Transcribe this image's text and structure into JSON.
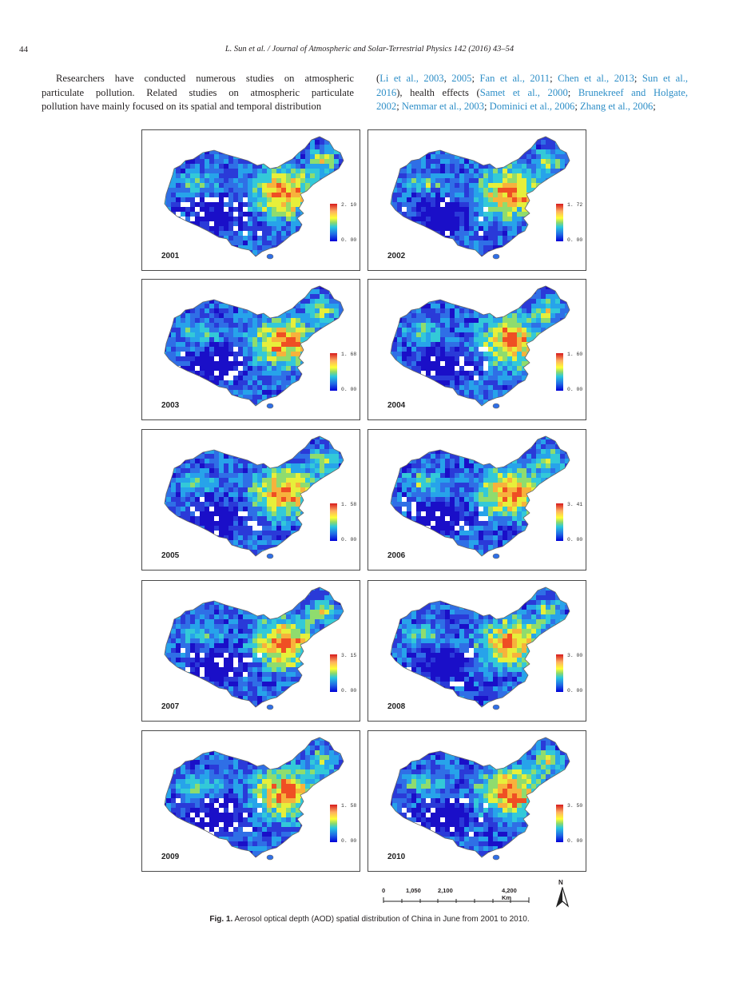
{
  "header": {
    "page_number": "44",
    "running_head": "L. Sun et al. / Journal of Atmospheric and Solar-Terrestrial Physics 142 (2016) 43–54"
  },
  "body": {
    "left_lines": [
      "Researchers have conducted numerous studies on atmospheric",
      "particulate pollution. Related studies on atmospheric particulate",
      "pollution have mainly focused on its spatial and temporal distribution"
    ],
    "right_lines": [
      [
        [
          "(",
          false
        ],
        [
          "Li et al., 2003",
          true
        ],
        [
          ", ",
          false
        ],
        [
          "2005",
          true
        ],
        [
          "; ",
          false
        ],
        [
          "Fan et al., 2011",
          true
        ],
        [
          "; ",
          false
        ],
        [
          "Chen et al., 2013",
          true
        ],
        [
          "; ",
          false
        ],
        [
          "Sun et al.,",
          true
        ]
      ],
      [
        [
          "2016",
          true
        ],
        [
          "), health effects (",
          false
        ],
        [
          "Samet et al., 2000",
          true
        ],
        [
          "; ",
          false
        ],
        [
          "Brunekreef and Holgate,",
          true
        ]
      ],
      [
        [
          "2002",
          true
        ],
        [
          "; ",
          false
        ],
        [
          "Nemmar et al., 2003",
          true
        ],
        [
          "; ",
          false
        ],
        [
          "Dominici et al., 2006",
          true
        ],
        [
          "; ",
          false
        ],
        [
          "Zhang et al., 2006",
          true
        ],
        [
          ";",
          false
        ]
      ]
    ]
  },
  "figure": {
    "panels": [
      {
        "year": "2001",
        "max": "2. 10",
        "min": "0. 00"
      },
      {
        "year": "2002",
        "max": "1. 72",
        "min": "0. 00"
      },
      {
        "year": "2003",
        "max": "1. 68",
        "min": "0. 00"
      },
      {
        "year": "2004",
        "max": "1. 60",
        "min": "0. 00"
      },
      {
        "year": "2005",
        "max": "1. 58",
        "min": "0. 00"
      },
      {
        "year": "2006",
        "max": "3. 41",
        "min": "0. 00"
      },
      {
        "year": "2007",
        "max": "3. 15",
        "min": "0. 00"
      },
      {
        "year": "2008",
        "max": "3. 00",
        "min": "0. 00"
      },
      {
        "year": "2009",
        "max": "1. 58",
        "min": "0. 00"
      },
      {
        "year": "2010",
        "max": "3. 50",
        "min": "0. 00"
      }
    ],
    "scale_bar": {
      "labels": [
        "0",
        "1,050",
        "2,100",
        "4,200 Km"
      ]
    },
    "north_label": "N",
    "caption_label": "Fig. 1.",
    "caption_text": "Aerosol optical depth (AOD) spatial distribution of China in June from 2001 to 2010."
  }
}
